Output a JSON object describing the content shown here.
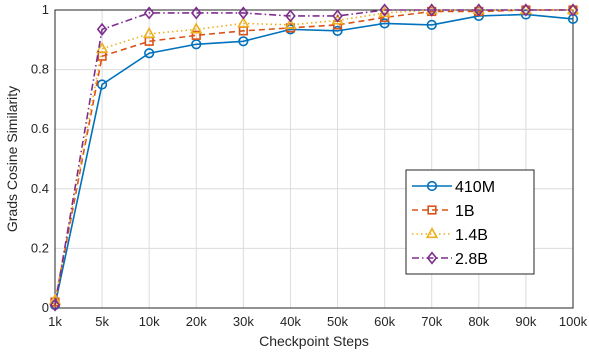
{
  "chart_data": {
    "type": "line",
    "title": "",
    "xlabel": "Checkpoint Steps",
    "ylabel": "Grads Cosine Similarity",
    "categories": [
      "1k",
      "5k",
      "10k",
      "20k",
      "30k",
      "40k",
      "50k",
      "60k",
      "70k",
      "80k",
      "90k",
      "100k"
    ],
    "ylim": [
      0,
      1
    ],
    "yticks": [
      "0",
      "0.2",
      "0.4",
      "0.6",
      "0.8",
      "1"
    ],
    "grid": true,
    "legend_position": "lower-right",
    "series": [
      {
        "name": "410M",
        "color": "#0072BD",
        "dash": "solid",
        "marker": "circle",
        "values": [
          0.01,
          0.75,
          0.855,
          0.885,
          0.895,
          0.935,
          0.93,
          0.955,
          0.95,
          0.98,
          0.985,
          0.97
        ]
      },
      {
        "name": "1B",
        "color": "#D95319",
        "dash": "dashed",
        "marker": "square",
        "values": [
          0.02,
          0.845,
          0.895,
          0.915,
          0.93,
          0.94,
          0.95,
          0.975,
          0.995,
          0.995,
          1.0,
          1.0
        ]
      },
      {
        "name": "1.4B",
        "color": "#EDB120",
        "dash": "dotted",
        "marker": "triangle",
        "values": [
          0.025,
          0.87,
          0.92,
          0.935,
          0.955,
          0.95,
          0.965,
          0.99,
          1.0,
          1.0,
          1.0,
          1.0
        ]
      },
      {
        "name": "2.8B",
        "color": "#7E2F8E",
        "dash": "dashdot",
        "marker": "diamond",
        "values": [
          0.01,
          0.935,
          0.99,
          0.99,
          0.99,
          0.98,
          0.98,
          1.0,
          1.0,
          1.0,
          1.0,
          1.0
        ]
      }
    ]
  }
}
